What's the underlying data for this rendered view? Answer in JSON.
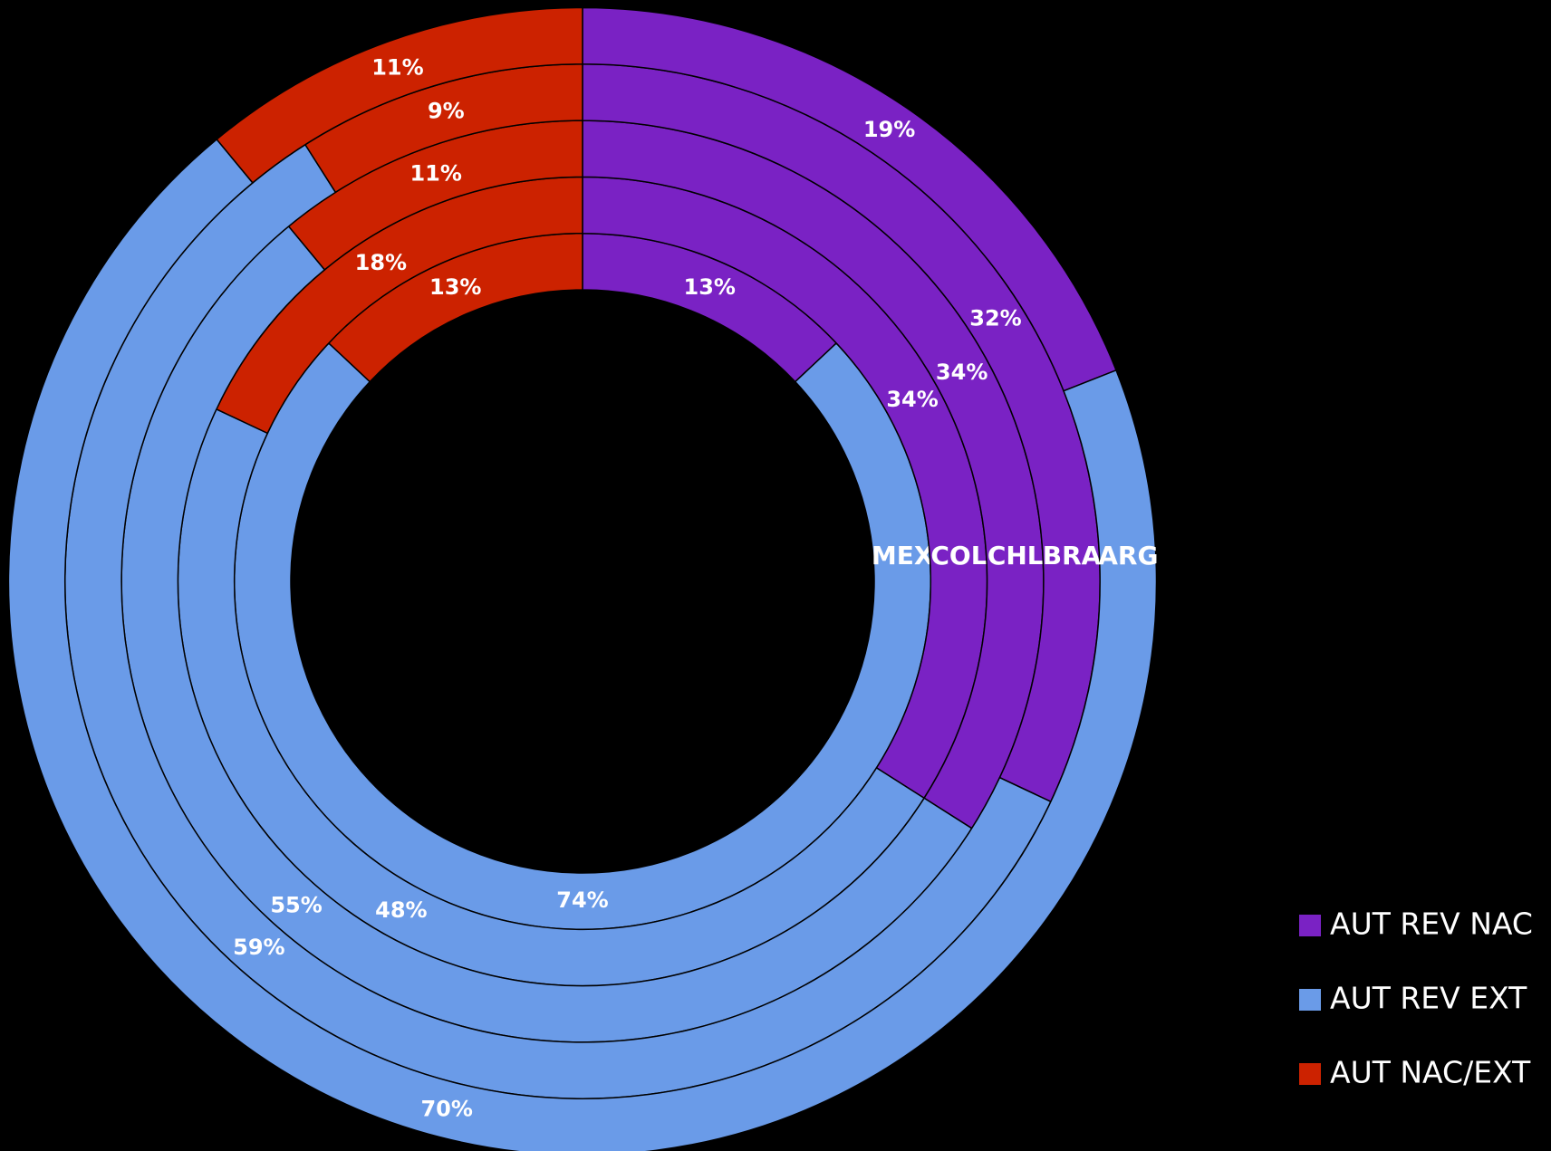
{
  "chart_data": {
    "type": "doughnut",
    "categories": [
      "MEX",
      "COL",
      "CHL",
      "BRA",
      "ARG"
    ],
    "series": [
      {
        "name": "AUT REV NAC",
        "color": "#7a22c4",
        "values": [
          13,
          34,
          34,
          32,
          19
        ],
        "value_labels": [
          "13%",
          "34%",
          "34%",
          "32%",
          "19%"
        ]
      },
      {
        "name": "AUT REV EXT",
        "color": "#6a9be8",
        "values": [
          74,
          48,
          55,
          59,
          70
        ],
        "value_labels": [
          "74%",
          "48%",
          "55%",
          "59%",
          "70%"
        ]
      },
      {
        "name": "AUT NAC/EXT",
        "color": "#cc2200",
        "values": [
          13,
          18,
          11,
          9,
          11
        ],
        "value_labels": [
          "13%",
          "18%",
          "11%",
          "9%",
          "11%"
        ]
      }
    ],
    "legend": "right"
  }
}
